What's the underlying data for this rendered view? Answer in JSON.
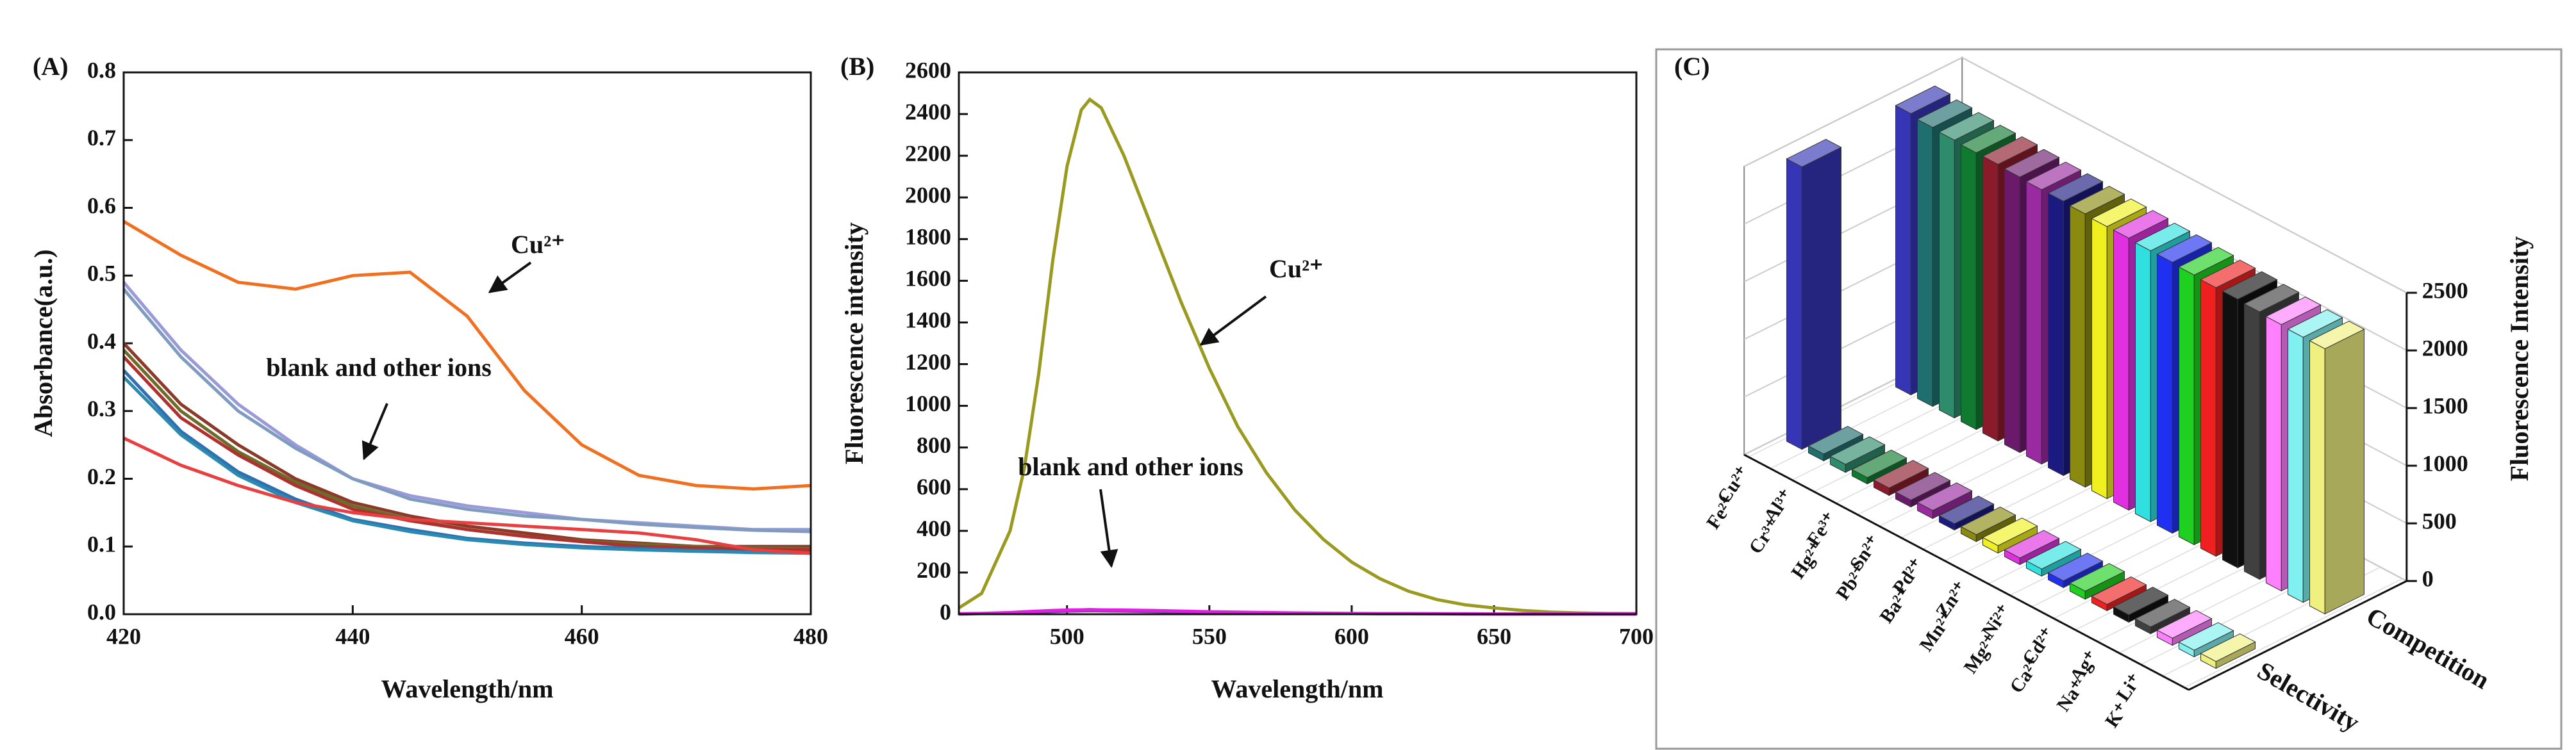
{
  "chart_data": [
    {
      "type": "line",
      "panel_label": "(A)",
      "xlabel": "Wavelength/nm",
      "ylabel": "Absorbance(a.u.)",
      "x": [
        420,
        425,
        430,
        435,
        440,
        445,
        450,
        455,
        460,
        465,
        470,
        475,
        480
      ],
      "xlim": [
        420,
        480
      ],
      "xticks": [
        420,
        440,
        460,
        480
      ],
      "ylim": [
        0,
        0.8
      ],
      "yticks": [
        {
          "value": 0,
          "label": "0.0"
        },
        0.1,
        0.2,
        0.3,
        0.4,
        0.5,
        0.6,
        0.7,
        0.8
      ],
      "series": [
        {
          "color": "#f07020",
          "values": [
            0.58,
            0.53,
            0.49,
            0.48,
            0.5,
            0.505,
            0.44,
            0.33,
            0.25,
            0.205,
            0.19,
            0.185,
            0.19
          ]
        },
        {
          "color": "#9a9ad8",
          "values": [
            0.49,
            0.39,
            0.31,
            0.25,
            0.2,
            0.175,
            0.16,
            0.15,
            0.14,
            0.135,
            0.13,
            0.125,
            0.125
          ]
        },
        {
          "color": "#7f9cc0",
          "values": [
            0.48,
            0.38,
            0.3,
            0.245,
            0.2,
            0.17,
            0.155,
            0.145,
            0.14,
            0.133,
            0.128,
            0.124,
            0.122
          ]
        },
        {
          "color": "#8b3a2a",
          "values": [
            0.4,
            0.31,
            0.25,
            0.2,
            0.165,
            0.145,
            0.13,
            0.12,
            0.11,
            0.105,
            0.1,
            0.1,
            0.1
          ]
        },
        {
          "color": "#6b6b2a",
          "values": [
            0.39,
            0.3,
            0.24,
            0.195,
            0.16,
            0.14,
            0.125,
            0.115,
            0.108,
            0.103,
            0.1,
            0.098,
            0.097
          ]
        },
        {
          "color": "#b03030",
          "values": [
            0.38,
            0.29,
            0.235,
            0.19,
            0.155,
            0.138,
            0.125,
            0.115,
            0.107,
            0.1,
            0.098,
            0.095,
            0.095
          ]
        },
        {
          "color": "#3070b0",
          "values": [
            0.36,
            0.27,
            0.21,
            0.17,
            0.14,
            0.125,
            0.112,
            0.105,
            0.1,
            0.097,
            0.094,
            0.092,
            0.09
          ]
        },
        {
          "color": "#2a8ab0",
          "values": [
            0.35,
            0.265,
            0.205,
            0.165,
            0.138,
            0.122,
            0.11,
            0.103,
            0.098,
            0.095,
            0.093,
            0.091,
            0.09
          ]
        },
        {
          "color": "#e84040",
          "values": [
            0.26,
            0.22,
            0.19,
            0.165,
            0.15,
            0.14,
            0.135,
            0.13,
            0.125,
            0.12,
            0.11,
            0.095,
            0.09
          ]
        }
      ],
      "annotations": [
        {
          "text": "Cu²⁺"
        },
        {
          "text": "blank and other ions"
        }
      ]
    },
    {
      "type": "line",
      "panel_label": "(B)",
      "xlabel": "Wavelength/nm",
      "ylabel": "Fluorescence intensity",
      "x": [
        462,
        470,
        480,
        485,
        490,
        495,
        500,
        505,
        508,
        512,
        520,
        530,
        540,
        550,
        560,
        570,
        580,
        590,
        600,
        610,
        620,
        630,
        640,
        650,
        660,
        670,
        680,
        690,
        700
      ],
      "xlim": [
        462,
        700
      ],
      "xticks": [
        500,
        550,
        600,
        650,
        700
      ],
      "ylim": [
        0,
        2600
      ],
      "yticks": [
        0,
        200,
        400,
        600,
        800,
        1000,
        1200,
        1400,
        1600,
        1800,
        2000,
        2200,
        2400,
        2600
      ],
      "series": [
        {
          "color": "#9a9a20",
          "values": [
            30,
            100,
            400,
            700,
            1150,
            1700,
            2150,
            2420,
            2470,
            2430,
            2200,
            1850,
            1500,
            1180,
            900,
            680,
            500,
            360,
            250,
            170,
            110,
            70,
            45,
            30,
            18,
            10,
            6,
            4,
            3
          ]
        },
        {
          "color": "#8040a0",
          "values": [
            1,
            3,
            6,
            9,
            11,
            13,
            15,
            16,
            17,
            16,
            15,
            13,
            11,
            9,
            7,
            6,
            5,
            4,
            3,
            2,
            2,
            2,
            1,
            1,
            1,
            1,
            1,
            1,
            1
          ]
        },
        {
          "color": "#e020e0",
          "values": [
            2,
            4,
            8,
            12,
            15,
            18,
            20,
            21,
            22,
            21,
            20,
            18,
            15,
            12,
            10,
            8,
            6,
            5,
            4,
            3,
            3,
            2,
            2,
            1,
            1,
            1,
            1,
            1,
            1
          ]
        }
      ],
      "annotations": [
        {
          "text": "Cu²⁺"
        },
        {
          "text": "blank and other ions"
        }
      ]
    },
    {
      "type": "bar3d",
      "panel_label": "(C)",
      "zlabel": "Fluorescence Intensity",
      "categories": [
        "Cu²⁺",
        "Fe²⁺",
        "Al³⁺",
        "Cr³⁺",
        "Fe³⁺",
        "Hg²⁺",
        "Sn²⁺",
        "Pb²⁺",
        "Pd²⁺",
        "Ba²⁺",
        "Zn²⁺",
        "Mn²⁺",
        "Ni²⁺",
        "Mg²⁺",
        "Cd²⁺",
        "Ca²⁺",
        "Ag⁺",
        "Na⁺",
        "Li⁺",
        "K⁺"
      ],
      "colors": [
        "#3535b5",
        "#1f6f6f",
        "#2e8b6b",
        "#107a30",
        "#8b1a2a",
        "#6b1a6b",
        "#9a2aa0",
        "#1a1a80",
        "#8a8a10",
        "#f0f020",
        "#e030e0",
        "#30e0e0",
        "#2030f0",
        "#20d020",
        "#f02020",
        "#101010",
        "#404040",
        "#ff80ff",
        "#80f0f0",
        "#f0f080"
      ],
      "zlim": [
        0,
        2500
      ],
      "zticks": [
        0,
        500,
        1000,
        1500,
        2000,
        2500
      ],
      "series": [
        {
          "name": "Selectivity",
          "values": [
            2450,
            60,
            70,
            55,
            65,
            60,
            70,
            55,
            60,
            65,
            58,
            62,
            60,
            70,
            55,
            65,
            60,
            62,
            58,
            60
          ]
        },
        {
          "name": "Competition",
          "values": [
            2440,
            2420,
            2410,
            2400,
            2400,
            2390,
            2380,
            2380,
            2370,
            2360,
            2360,
            2350,
            2350,
            2340,
            2330,
            2330,
            2320,
            2310,
            2300,
            2300
          ]
        }
      ]
    }
  ]
}
